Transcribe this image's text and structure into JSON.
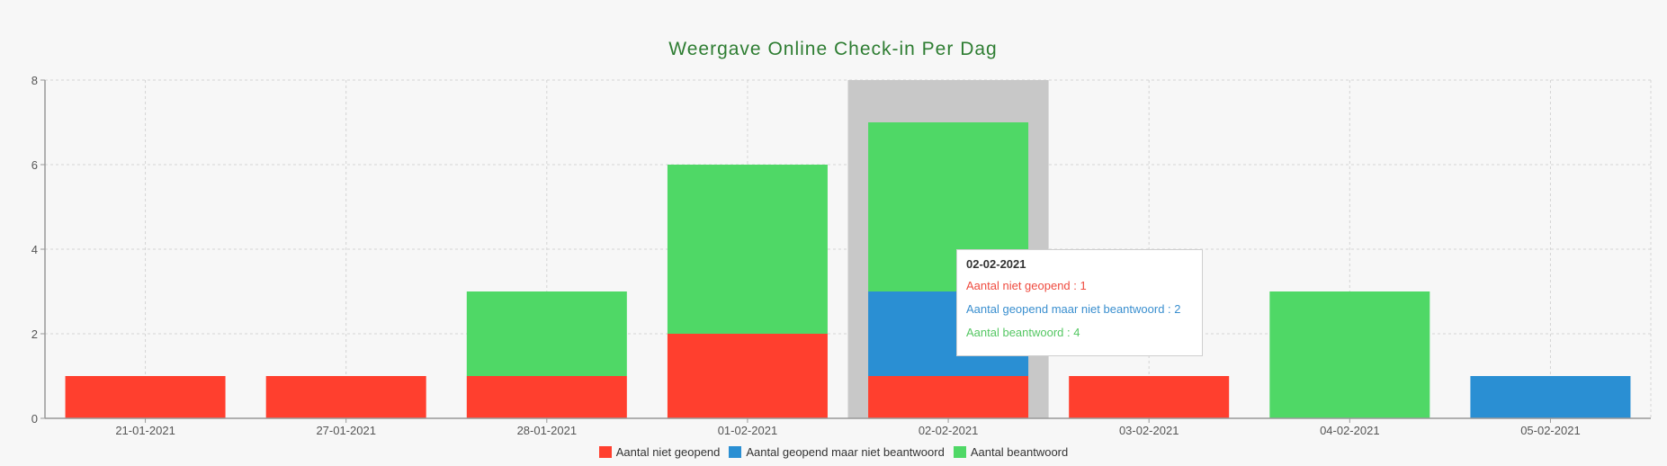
{
  "chart_data": {
    "type": "bar",
    "stacked": true,
    "title": "Weergave Online Check-in Per Dag",
    "xlabel": "",
    "ylabel": "",
    "ylim": [
      0,
      8
    ],
    "yticks": [
      0,
      2,
      4,
      6,
      8
    ],
    "grid": true,
    "legend_position": "bottom",
    "categories": [
      "21-01-2021",
      "27-01-2021",
      "28-01-2021",
      "01-02-2021",
      "02-02-2021",
      "03-02-2021",
      "04-02-2021",
      "05-02-2021"
    ],
    "series": [
      {
        "name": "Aantal niet geopend",
        "color": "#ff3f2e",
        "values": [
          1,
          1,
          1,
          2,
          1,
          1,
          0,
          0
        ]
      },
      {
        "name": "Aantal geopend maar niet beantwoord",
        "color": "#2a8fd3",
        "values": [
          0,
          0,
          0,
          0,
          2,
          0,
          0,
          1
        ]
      },
      {
        "name": "Aantal beantwoord",
        "color": "#4fd866",
        "values": [
          0,
          0,
          2,
          4,
          4,
          0,
          3,
          0
        ]
      }
    ],
    "highlighted_category": "02-02-2021"
  },
  "tooltip": {
    "title": "02-02-2021",
    "rows": [
      {
        "text": "Aantal niet geopend : 1",
        "color": "#ef4b3f"
      },
      {
        "text": "Aantal geopend maar niet beantwoord : 2",
        "color": "#3a8fcf"
      },
      {
        "text": "Aantal beantwoord : 4",
        "color": "#55c763"
      }
    ]
  },
  "colors": {
    "title": "#2e7d32",
    "axis": "#999999",
    "grid": "#d4d4d4",
    "highlight": "#c8c8c8",
    "tick_text": "#555555"
  }
}
